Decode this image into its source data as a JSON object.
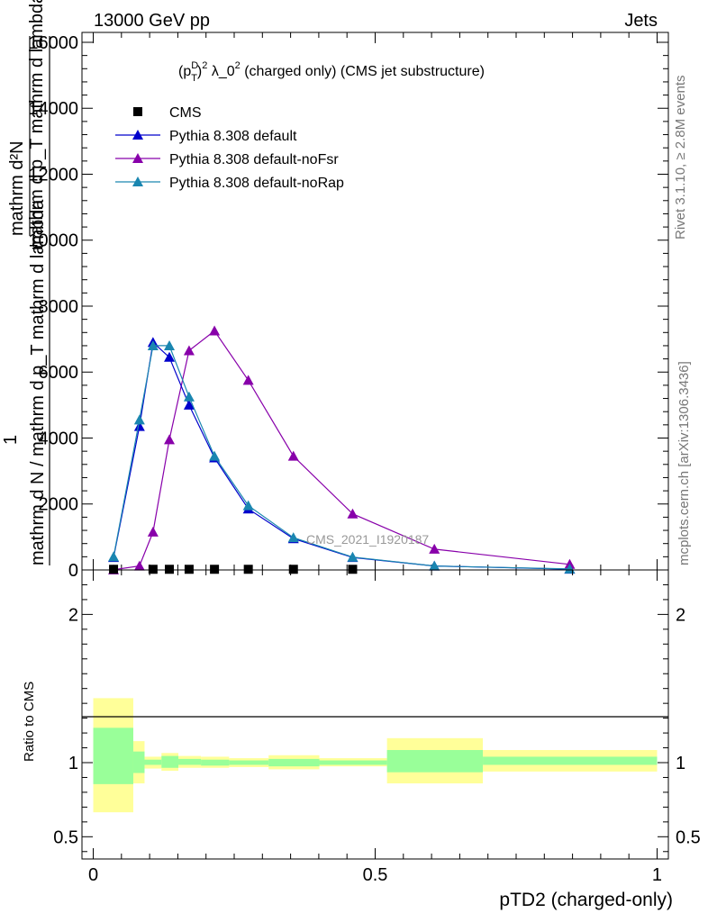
{
  "header": {
    "left": "13000 GeV pp",
    "right": "Jets"
  },
  "side_labels": {
    "rivet": "Rivet 3.1.10, ≥ 2.8M events",
    "mcplots": "mcplots.cern.ch [arXiv:1306.3436]"
  },
  "watermark": "CMS_2021_I1920187",
  "chart_data": [
    {
      "type": "line",
      "title": "(p_T^D)^2 λ_0^2 (charged only) (CMS jet substructure)",
      "title_parts": {
        "a": "(p",
        "sup1": "D",
        "sub1": "T",
        "b": ")",
        "sup2": "2",
        "c": " λ_0",
        "sup3": "2",
        "d": " (charged only) (CMS jet substructure)"
      },
      "ylabel_parts": {
        "one": "1",
        "den": "mathrm d N / mathrm d p_T mathrm d lambda",
        "num": "mathrm d²N",
        "den2": "mathrm d p_T mathrm d lambda"
      },
      "ylim": [
        0,
        16300
      ],
      "xlim": [
        -0.02,
        1.02
      ],
      "yticks": [
        0,
        2000,
        4000,
        6000,
        8000,
        10000,
        12000,
        14000,
        16000
      ],
      "ytick_labels": [
        "0",
        "2000",
        "4000",
        "6000",
        "8000",
        "10000",
        "12000",
        "14000",
        "16000"
      ],
      "legend_position": "top-left",
      "series": [
        {
          "name": "CMS",
          "color": "#000000",
          "marker": "square",
          "x": [
            0.036,
            0.082,
            0.106,
            0.135,
            0.17,
            0.215,
            0.275,
            0.355,
            0.46,
            0.605,
            0.845
          ],
          "values": [
            20,
            20,
            20,
            20,
            20,
            20,
            20,
            20,
            20,
            20,
            20
          ],
          "visible_points": [
            0.036,
            0.106,
            0.135,
            0.17,
            0.215,
            0.275,
            0.355,
            0.46
          ]
        },
        {
          "name": "Pythia 8.308 default",
          "color": "#0000cc",
          "marker": "triangle",
          "x": [
            0.036,
            0.082,
            0.106,
            0.135,
            0.17,
            0.215,
            0.275,
            0.355,
            0.46,
            0.605,
            0.845
          ],
          "values": [
            380,
            4350,
            6900,
            6450,
            5000,
            3400,
            1850,
            950,
            380,
            120,
            25
          ]
        },
        {
          "name": "Pythia 8.308 default-noFsr",
          "color": "#8800aa",
          "marker": "triangle",
          "x": [
            0.036,
            0.082,
            0.106,
            0.135,
            0.17,
            0.215,
            0.275,
            0.355,
            0.46,
            0.605,
            0.845
          ],
          "values": [
            5,
            120,
            1150,
            3950,
            6650,
            7250,
            5750,
            3450,
            1700,
            630,
            170
          ]
        },
        {
          "name": "Pythia 8.308 default-noRap",
          "color": "#1a86b0",
          "marker": "triangle",
          "x": [
            0.036,
            0.082,
            0.106,
            0.135,
            0.17,
            0.215,
            0.275,
            0.355,
            0.46,
            0.605,
            0.845
          ],
          "values": [
            400,
            4550,
            6800,
            6800,
            5250,
            3450,
            1950,
            980,
            390,
            120,
            30
          ]
        }
      ]
    },
    {
      "type": "area",
      "ylabel": "Ratio to CMS",
      "xlabel": "pTD2 (charged-only)",
      "xlim": [
        -0.02,
        1.02
      ],
      "ylim": [
        0.35,
        2.3
      ],
      "yticks": [
        0.5,
        1,
        2
      ],
      "ytick_labels": [
        "0.5",
        "1",
        "2"
      ],
      "xticks": [
        0,
        0.5,
        1
      ],
      "xtick_labels": [
        "0",
        "0.5",
        "1"
      ],
      "reference_line": 1,
      "bins": [
        {
          "xlo": 0.0,
          "xhi": 0.071,
          "inner_lo": 0.855,
          "inner_hi": 1.235,
          "outer_lo": 0.665,
          "outer_hi": 1.435
        },
        {
          "xlo": 0.071,
          "xhi": 0.091,
          "inner_lo": 0.93,
          "inner_hi": 1.075,
          "outer_lo": 0.86,
          "outer_hi": 1.145
        },
        {
          "xlo": 0.091,
          "xhi": 0.121,
          "inner_lo": 0.985,
          "inner_hi": 1.02,
          "outer_lo": 0.96,
          "outer_hi": 1.04
        },
        {
          "xlo": 0.121,
          "xhi": 0.151,
          "inner_lo": 0.965,
          "inner_hi": 1.045,
          "outer_lo": 0.945,
          "outer_hi": 1.065
        },
        {
          "xlo": 0.151,
          "xhi": 0.191,
          "inner_lo": 0.985,
          "inner_hi": 1.025,
          "outer_lo": 0.965,
          "outer_hi": 1.045
        },
        {
          "xlo": 0.191,
          "xhi": 0.241,
          "inner_lo": 0.98,
          "inner_hi": 1.02,
          "outer_lo": 0.965,
          "outer_hi": 1.04
        },
        {
          "xlo": 0.241,
          "xhi": 0.311,
          "inner_lo": 0.985,
          "inner_hi": 1.015,
          "outer_lo": 0.97,
          "outer_hi": 1.03
        },
        {
          "xlo": 0.311,
          "xhi": 0.401,
          "inner_lo": 0.975,
          "inner_hi": 1.025,
          "outer_lo": 0.955,
          "outer_hi": 1.05
        },
        {
          "xlo": 0.401,
          "xhi": 0.521,
          "inner_lo": 0.985,
          "inner_hi": 1.015,
          "outer_lo": 0.975,
          "outer_hi": 1.03
        },
        {
          "xlo": 0.521,
          "xhi": 0.691,
          "inner_lo": 0.935,
          "inner_hi": 1.085,
          "outer_lo": 0.86,
          "outer_hi": 1.165
        },
        {
          "xlo": 0.691,
          "xhi": 1.0,
          "inner_lo": 0.985,
          "inner_hi": 1.04,
          "outer_lo": 0.94,
          "outer_hi": 1.085
        }
      ],
      "band_colors": {
        "inner": "#99ff99",
        "outer": "#ffff99"
      }
    }
  ]
}
